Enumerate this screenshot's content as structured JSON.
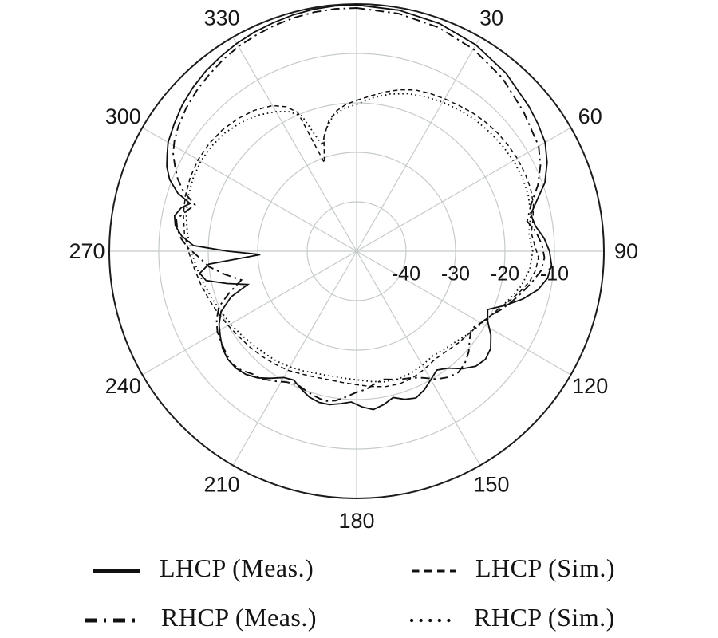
{
  "chart_data": {
    "type": "line",
    "subtype": "polar-radiation-pattern",
    "title": "",
    "angle_axis": {
      "unit": "degrees",
      "direction": "clockwise",
      "zero_at": "top",
      "spoke_step_deg": 30,
      "labels": [
        "30",
        "60",
        "90",
        "120",
        "150",
        "180",
        "210",
        "240",
        "270",
        "300",
        "330"
      ]
    },
    "r_axis": {
      "unit": "dB",
      "min": -50,
      "max": 0,
      "ticks": [
        -40,
        -30,
        -20,
        -10
      ],
      "tick_labels": [
        "-40",
        "-30",
        "-20",
        "-10"
      ],
      "grid": true
    },
    "legend_position": "bottom",
    "colors": {
      "line": "#101010",
      "grid": "#c5cbca",
      "outer_ring": "#1c1c1c",
      "text": "#161616",
      "background": "#ffffff"
    },
    "series": [
      {
        "name": "LHCP (Meas.)",
        "style": "solid",
        "points": [
          [
            0,
            -0.2
          ],
          [
            10,
            -0.5
          ],
          [
            20,
            -1
          ],
          [
            30,
            -1.8
          ],
          [
            40,
            -3
          ],
          [
            50,
            -4.5
          ],
          [
            55,
            -5.2
          ],
          [
            60,
            -6
          ],
          [
            65,
            -7.5
          ],
          [
            70,
            -9.5
          ],
          [
            74,
            -12
          ],
          [
            78,
            -14
          ],
          [
            82,
            -13.5
          ],
          [
            86,
            -12
          ],
          [
            90,
            -11
          ],
          [
            94,
            -10.5
          ],
          [
            98,
            -11
          ],
          [
            102,
            -12.5
          ],
          [
            106,
            -15
          ],
          [
            110,
            -18
          ],
          [
            114,
            -21
          ],
          [
            118,
            -20
          ],
          [
            122,
            -18
          ],
          [
            126,
            -16.5
          ],
          [
            130,
            -16
          ],
          [
            134,
            -16.5
          ],
          [
            138,
            -18
          ],
          [
            142,
            -20
          ],
          [
            146,
            -21
          ],
          [
            150,
            -20
          ],
          [
            154,
            -18.8
          ],
          [
            158,
            -18
          ],
          [
            162,
            -18.5
          ],
          [
            166,
            -19.5
          ],
          [
            170,
            -18.5
          ],
          [
            174,
            -17.8
          ],
          [
            178,
            -18.5
          ],
          [
            182,
            -19.5
          ],
          [
            186,
            -19
          ],
          [
            190,
            -18.5
          ],
          [
            194,
            -18.5
          ],
          [
            198,
            -19
          ],
          [
            202,
            -20
          ],
          [
            206,
            -21
          ],
          [
            210,
            -20.5
          ],
          [
            214,
            -19
          ],
          [
            218,
            -17.5
          ],
          [
            222,
            -16.5
          ],
          [
            226,
            -16
          ],
          [
            230,
            -16
          ],
          [
            234,
            -16.5
          ],
          [
            238,
            -17.5
          ],
          [
            242,
            -18.5
          ],
          [
            246,
            -20
          ],
          [
            250,
            -23
          ],
          [
            253,
            -27
          ],
          [
            256,
            -23
          ],
          [
            259,
            -19
          ],
          [
            262,
            -18
          ],
          [
            265,
            -20
          ],
          [
            268,
            -30.5
          ],
          [
            270,
            -24
          ],
          [
            272,
            -17
          ],
          [
            275,
            -14.5
          ],
          [
            278,
            -13
          ],
          [
            281,
            -12.5
          ],
          [
            284,
            -13.5
          ],
          [
            286,
            -15
          ],
          [
            288,
            -12
          ],
          [
            291,
            -9.5
          ],
          [
            294,
            -8
          ],
          [
            297,
            -7
          ],
          [
            300,
            -6
          ],
          [
            305,
            -5
          ],
          [
            310,
            -4
          ],
          [
            315,
            -3.2
          ],
          [
            320,
            -2.5
          ],
          [
            325,
            -2
          ],
          [
            330,
            -1.5
          ],
          [
            335,
            -1.1
          ],
          [
            340,
            -0.8
          ],
          [
            345,
            -0.5
          ],
          [
            350,
            -0.3
          ],
          [
            355,
            -0.2
          ],
          [
            360,
            -0.2
          ]
        ]
      },
      {
        "name": "RHCP (Meas.)",
        "style": "dashdot",
        "points": [
          [
            0,
            -0.8
          ],
          [
            10,
            -1.2
          ],
          [
            20,
            -1.8
          ],
          [
            30,
            -2.8
          ],
          [
            40,
            -4.2
          ],
          [
            50,
            -6
          ],
          [
            60,
            -7.5
          ],
          [
            65,
            -9
          ],
          [
            70,
            -11
          ],
          [
            75,
            -13.5
          ],
          [
            80,
            -15
          ],
          [
            84,
            -13.5
          ],
          [
            88,
            -12.5
          ],
          [
            92,
            -12
          ],
          [
            96,
            -12.5
          ],
          [
            100,
            -14
          ],
          [
            104,
            -15.5
          ],
          [
            108,
            -17
          ],
          [
            112,
            -18.5
          ],
          [
            116,
            -20
          ],
          [
            120,
            -21
          ],
          [
            124,
            -22
          ],
          [
            128,
            -21
          ],
          [
            132,
            -19.5
          ],
          [
            136,
            -18.5
          ],
          [
            140,
            -18
          ],
          [
            144,
            -18.5
          ],
          [
            148,
            -19.5
          ],
          [
            152,
            -21
          ],
          [
            156,
            -22
          ],
          [
            160,
            -22.5
          ],
          [
            164,
            -23
          ],
          [
            168,
            -23.5
          ],
          [
            172,
            -23
          ],
          [
            176,
            -22
          ],
          [
            180,
            -21.5
          ],
          [
            184,
            -20.5
          ],
          [
            188,
            -19.5
          ],
          [
            192,
            -19
          ],
          [
            196,
            -19.5
          ],
          [
            200,
            -20
          ],
          [
            204,
            -20.5
          ],
          [
            208,
            -20
          ],
          [
            212,
            -19
          ],
          [
            216,
            -18
          ],
          [
            220,
            -17.5
          ],
          [
            224,
            -16.5
          ],
          [
            228,
            -16
          ],
          [
            232,
            -16.5
          ],
          [
            236,
            -17
          ],
          [
            240,
            -17.5
          ],
          [
            244,
            -18.5
          ],
          [
            248,
            -20
          ],
          [
            252,
            -23
          ],
          [
            256,
            -26
          ],
          [
            260,
            -23
          ],
          [
            264,
            -20
          ],
          [
            268,
            -18
          ],
          [
            271,
            -16
          ],
          [
            274,
            -14.5
          ],
          [
            277,
            -13.5
          ],
          [
            280,
            -13
          ],
          [
            283,
            -14.5
          ],
          [
            286,
            -16
          ],
          [
            289,
            -13
          ],
          [
            292,
            -11
          ],
          [
            295,
            -9.5
          ],
          [
            298,
            -8
          ],
          [
            301,
            -7
          ],
          [
            305,
            -6
          ],
          [
            310,
            -5
          ],
          [
            315,
            -4.2
          ],
          [
            320,
            -3.5
          ],
          [
            325,
            -2.8
          ],
          [
            330,
            -2.2
          ],
          [
            335,
            -1.8
          ],
          [
            340,
            -1.4
          ],
          [
            345,
            -1.1
          ],
          [
            350,
            -0.9
          ],
          [
            355,
            -0.8
          ],
          [
            360,
            -0.8
          ]
        ]
      },
      {
        "name": "LHCP (Sim.)",
        "style": "dash",
        "points": [
          [
            0,
            -19.5
          ],
          [
            5,
            -18.5
          ],
          [
            10,
            -17.3
          ],
          [
            15,
            -16.2
          ],
          [
            20,
            -15.3
          ],
          [
            25,
            -14.8
          ],
          [
            30,
            -14.4
          ],
          [
            35,
            -14
          ],
          [
            40,
            -13.5
          ],
          [
            45,
            -13.1
          ],
          [
            50,
            -12.8
          ],
          [
            55,
            -12.6
          ],
          [
            60,
            -12.5
          ],
          [
            65,
            -12.5
          ],
          [
            70,
            -12.6
          ],
          [
            75,
            -13
          ],
          [
            80,
            -13.8
          ],
          [
            84,
            -14.5
          ],
          [
            88,
            -14
          ],
          [
            92,
            -13.2
          ],
          [
            96,
            -13.6
          ],
          [
            100,
            -14.5
          ],
          [
            104,
            -16
          ],
          [
            108,
            -17.5
          ],
          [
            112,
            -19
          ],
          [
            116,
            -20
          ],
          [
            120,
            -21
          ],
          [
            126,
            -21.8
          ],
          [
            132,
            -22.3
          ],
          [
            138,
            -22.8
          ],
          [
            144,
            -23
          ],
          [
            150,
            -22.5
          ],
          [
            156,
            -22
          ],
          [
            162,
            -21.8
          ],
          [
            168,
            -22
          ],
          [
            174,
            -22.5
          ],
          [
            180,
            -23
          ],
          [
            186,
            -23.3
          ],
          [
            192,
            -23.4
          ],
          [
            198,
            -23.2
          ],
          [
            204,
            -22.8
          ],
          [
            210,
            -22.2
          ],
          [
            216,
            -21.8
          ],
          [
            222,
            -21.4
          ],
          [
            228,
            -21
          ],
          [
            234,
            -20.6
          ],
          [
            240,
            -20
          ],
          [
            246,
            -19.3
          ],
          [
            252,
            -18.6
          ],
          [
            258,
            -17.8
          ],
          [
            264,
            -17
          ],
          [
            270,
            -16
          ],
          [
            276,
            -15
          ],
          [
            282,
            -14.2
          ],
          [
            288,
            -13.6
          ],
          [
            294,
            -13.2
          ],
          [
            300,
            -13
          ],
          [
            306,
            -13.1
          ],
          [
            312,
            -13.4
          ],
          [
            318,
            -14
          ],
          [
            324,
            -14.8
          ],
          [
            330,
            -16
          ],
          [
            334,
            -17.5
          ],
          [
            337,
            -19.5
          ],
          [
            340,
            -31
          ],
          [
            344,
            -26
          ],
          [
            348,
            -23
          ],
          [
            352,
            -21.3
          ],
          [
            356,
            -20.2
          ],
          [
            360,
            -19.5
          ]
        ]
      },
      {
        "name": "RHCP (Sim.)",
        "style": "dot",
        "points": [
          [
            0,
            -20.3
          ],
          [
            6,
            -18.8
          ],
          [
            12,
            -17.5
          ],
          [
            18,
            -16.5
          ],
          [
            24,
            -15.8
          ],
          [
            30,
            -15.2
          ],
          [
            36,
            -14.7
          ],
          [
            42,
            -14.2
          ],
          [
            48,
            -13.9
          ],
          [
            54,
            -13.6
          ],
          [
            60,
            -13.4
          ],
          [
            66,
            -13.3
          ],
          [
            72,
            -13.5
          ],
          [
            78,
            -14
          ],
          [
            84,
            -15
          ],
          [
            90,
            -14.4
          ],
          [
            96,
            -14.8
          ],
          [
            102,
            -16
          ],
          [
            108,
            -17.8
          ],
          [
            114,
            -19.4
          ],
          [
            120,
            -20.8
          ],
          [
            126,
            -21.8
          ],
          [
            132,
            -22.8
          ],
          [
            138,
            -23.4
          ],
          [
            144,
            -23.8
          ],
          [
            150,
            -23.4
          ],
          [
            156,
            -23
          ],
          [
            162,
            -22.8
          ],
          [
            168,
            -23
          ],
          [
            174,
            -23.5
          ],
          [
            180,
            -24
          ],
          [
            186,
            -24.2
          ],
          [
            192,
            -24.2
          ],
          [
            198,
            -24
          ],
          [
            204,
            -23.5
          ],
          [
            210,
            -23
          ],
          [
            216,
            -22.5
          ],
          [
            222,
            -22.2
          ],
          [
            228,
            -21.8
          ],
          [
            234,
            -21.2
          ],
          [
            240,
            -20.6
          ],
          [
            246,
            -20
          ],
          [
            252,
            -19.2
          ],
          [
            258,
            -18.4
          ],
          [
            264,
            -17.5
          ],
          [
            270,
            -16.6
          ],
          [
            276,
            -15.6
          ],
          [
            282,
            -14.8
          ],
          [
            288,
            -14.2
          ],
          [
            294,
            -13.8
          ],
          [
            300,
            -13.6
          ],
          [
            306,
            -13.8
          ],
          [
            312,
            -14.2
          ],
          [
            318,
            -15
          ],
          [
            324,
            -16
          ],
          [
            330,
            -17.4
          ],
          [
            334,
            -18.6
          ],
          [
            338,
            -20.5
          ],
          [
            342,
            -27.5
          ],
          [
            346,
            -24.5
          ],
          [
            350,
            -22.3
          ],
          [
            355,
            -21
          ],
          [
            360,
            -20.3
          ]
        ]
      }
    ]
  },
  "legend": {
    "items": [
      {
        "label": "LHCP (Meas.)",
        "series": 0
      },
      {
        "label": "LHCP (Sim.)",
        "series": 2
      },
      {
        "label": "RHCP (Meas.)",
        "series": 1
      },
      {
        "label": "RHCP (Sim.)",
        "series": 3
      }
    ]
  }
}
